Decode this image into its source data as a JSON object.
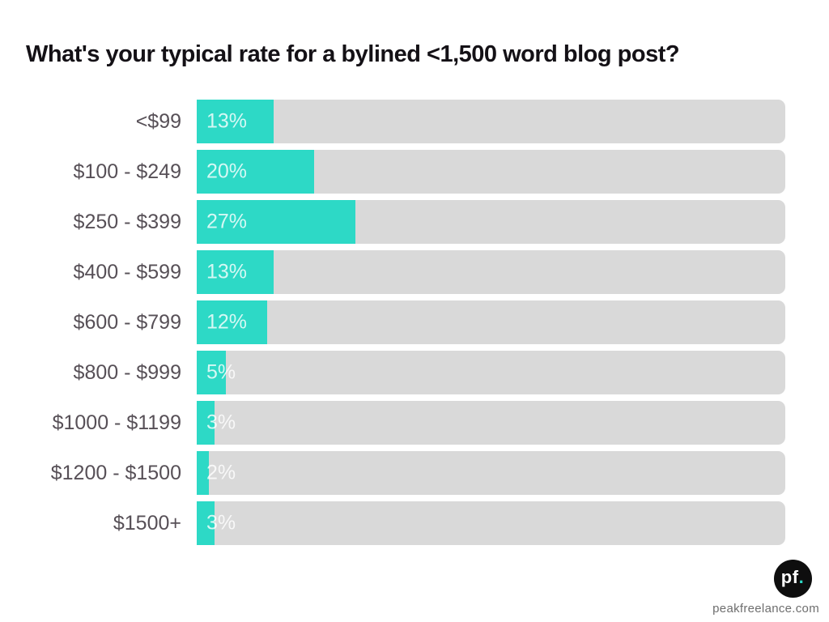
{
  "page": {
    "background": "#ffffff"
  },
  "header": {
    "title": "What's your typical rate for a bylined <1,500 word blog post?"
  },
  "chart_data": {
    "type": "bar",
    "orientation": "horizontal",
    "title": "What's your typical rate for a bylined <1,500 word blog post?",
    "categories": [
      "<$99",
      "$100 - $249",
      "$250 - $399",
      "$400 - $599",
      "$600 - $799",
      "$800 - $999",
      "$1000 - $1199",
      "$1200 - $1500",
      "$1500+"
    ],
    "values": [
      13,
      20,
      27,
      13,
      12,
      5,
      3,
      2,
      3
    ],
    "value_labels": [
      "13%",
      "20%",
      "27%",
      "13%",
      "12%",
      "5%",
      "3%",
      "2%",
      "3%"
    ],
    "unit": "%",
    "xlim": [
      0,
      100
    ],
    "grid": false,
    "legend": false,
    "bar_color": "#2dd9c6",
    "track_color": "#d9d9d9",
    "category_label_color": "#575057",
    "value_label_color": "rgba(255,255,255,0.8)"
  },
  "footer": {
    "logo": {
      "text": "pf",
      "dot": ".",
      "circle_color": "#0e0e0e",
      "dot_color": "#2dd9c6"
    },
    "website": "peakfreelance.com"
  }
}
